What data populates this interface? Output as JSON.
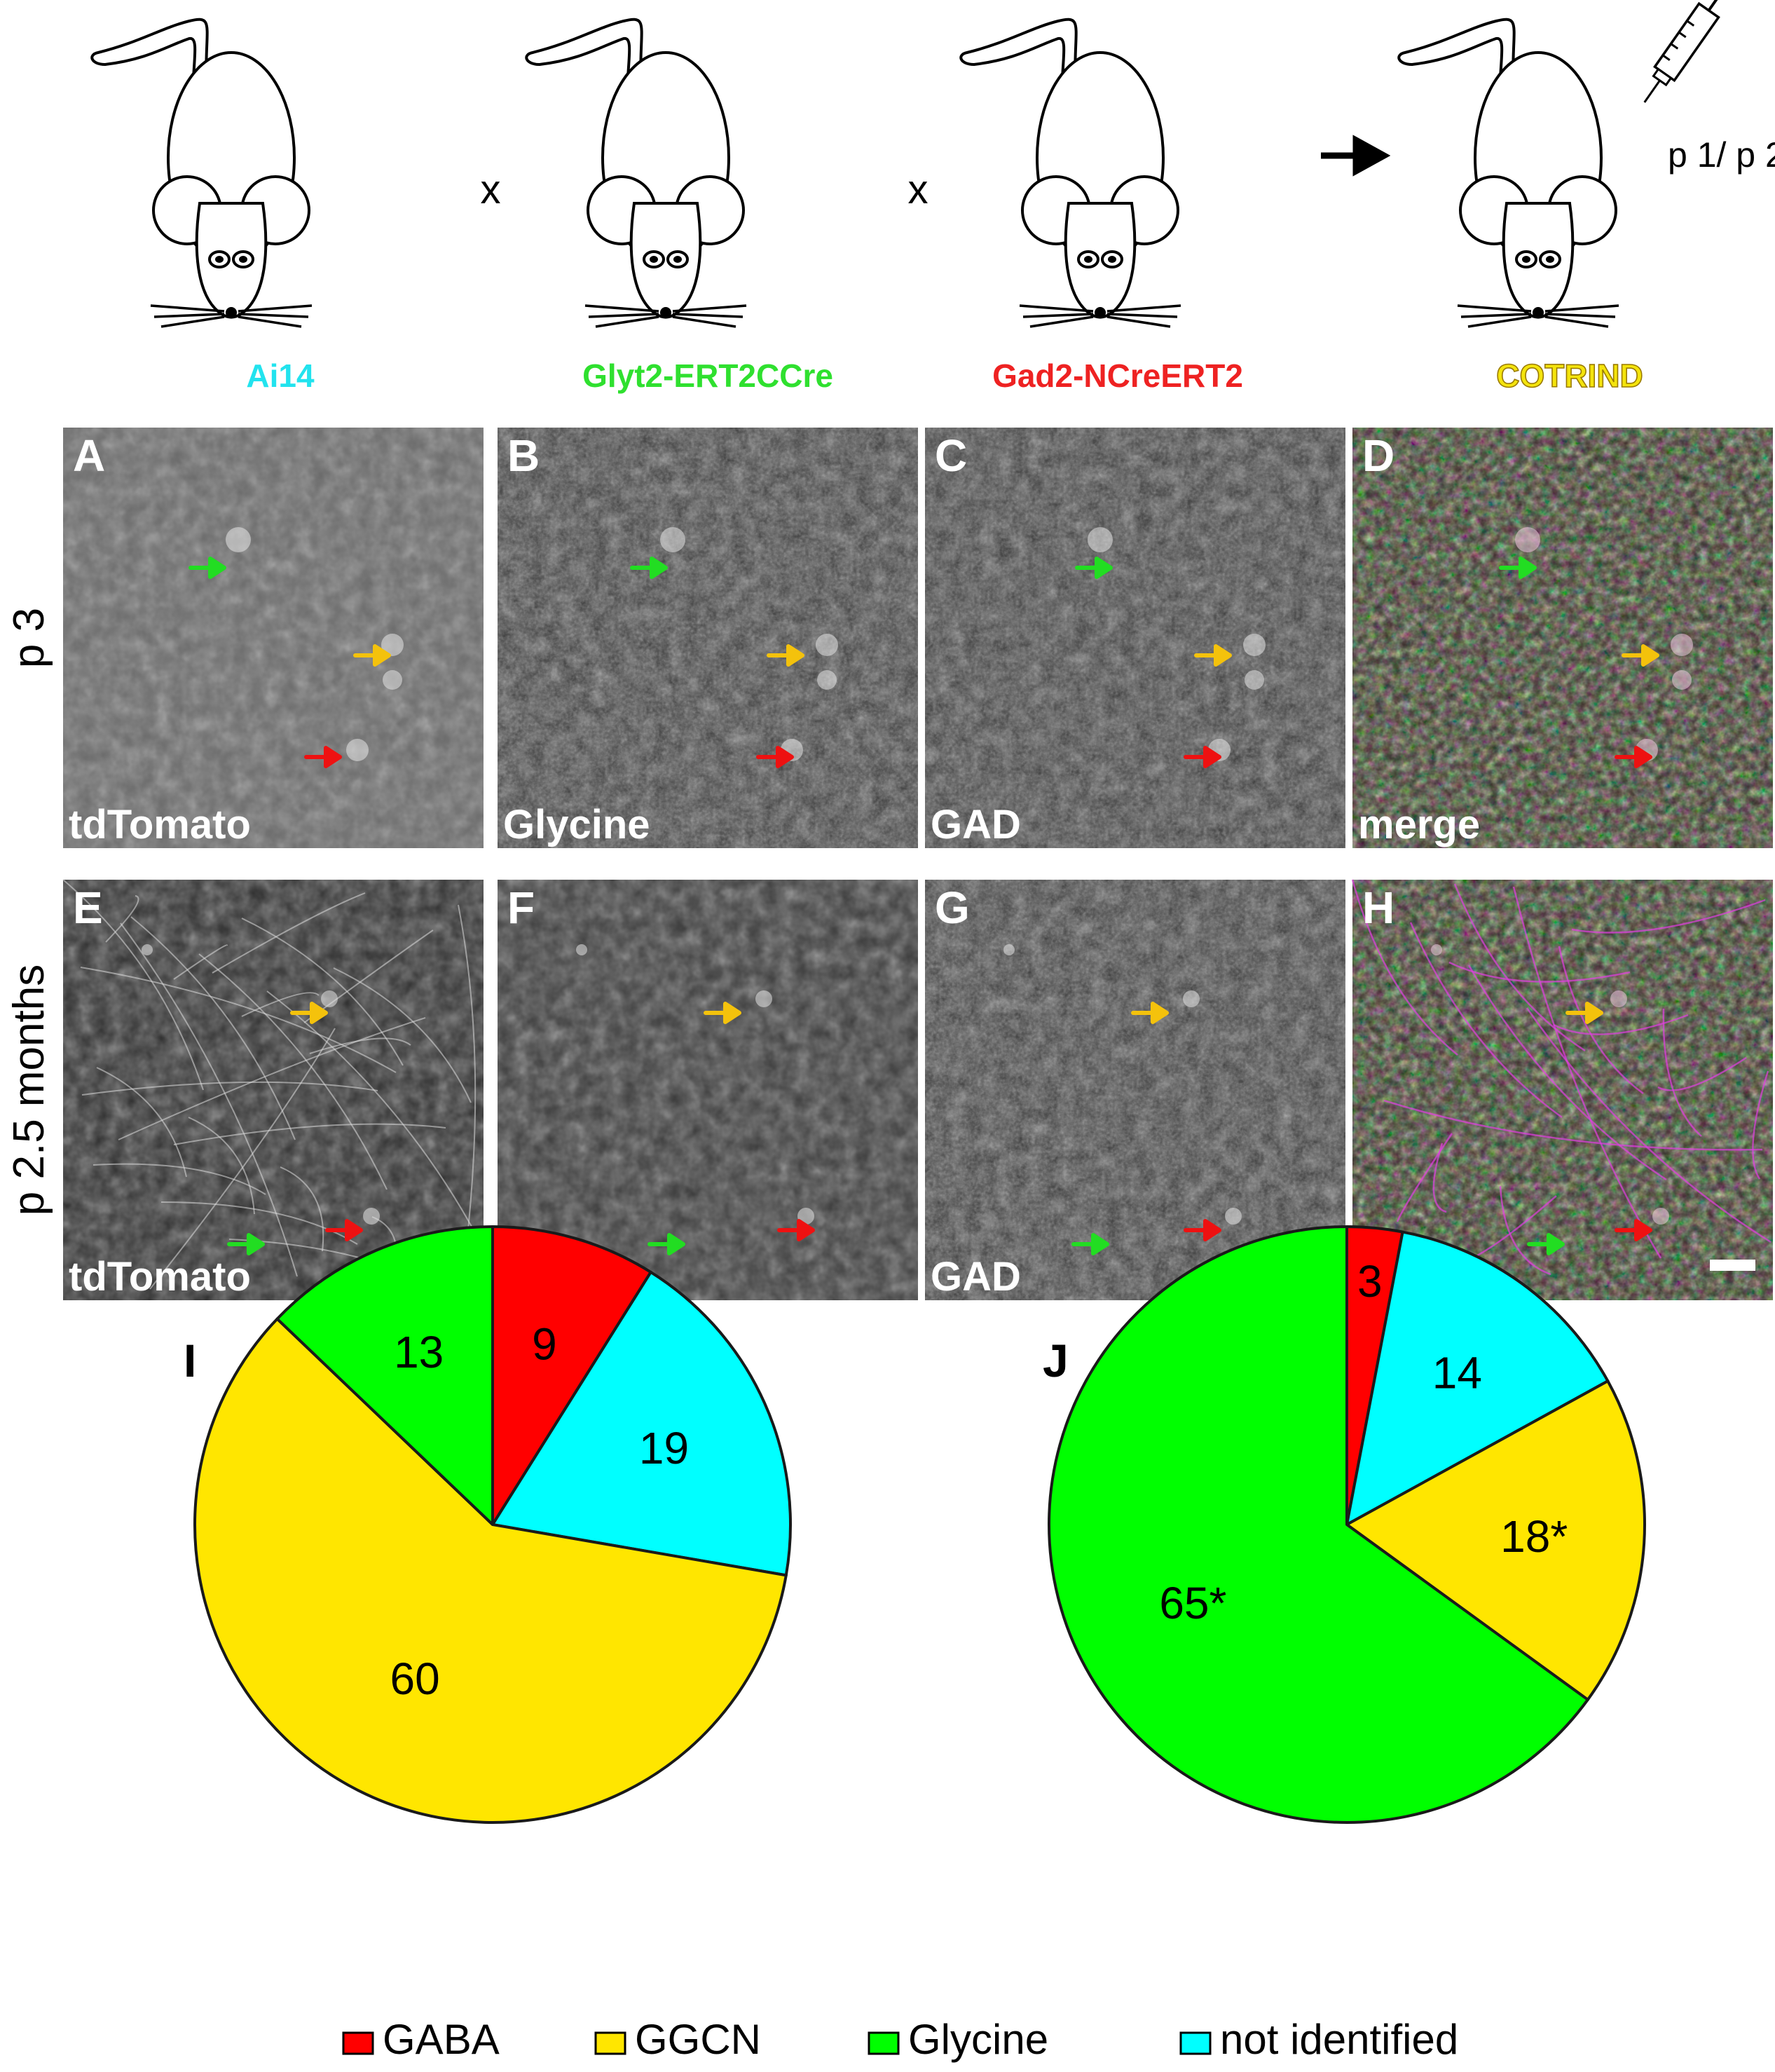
{
  "breeding": {
    "operators": [
      "x",
      "x"
    ],
    "strains": [
      {
        "label": "Ai14",
        "color": "#22e3ee"
      },
      {
        "label": "Glyt2-ERT2CCre",
        "color": "#2fe02f"
      },
      {
        "label": "Gad2-NCreERT2",
        "color": "#ee2222"
      },
      {
        "label": "COTRIND",
        "color": "#f4e40c"
      }
    ],
    "injection": "p 1/ p 2"
  },
  "micrographs": {
    "rows": [
      {
        "label": "p 3",
        "panels": [
          {
            "letter": "A",
            "caption": "tdTomato",
            "type": "gray"
          },
          {
            "letter": "B",
            "caption": "Glycine",
            "type": "gray"
          },
          {
            "letter": "C",
            "caption": "GAD",
            "type": "gray"
          },
          {
            "letter": "D",
            "caption": "merge",
            "type": "merge"
          }
        ]
      },
      {
        "label": "p 2.5 months",
        "panels": [
          {
            "letter": "E",
            "caption": "tdTomato",
            "type": "gray"
          },
          {
            "letter": "F",
            "caption": "Glycine",
            "type": "gray"
          },
          {
            "letter": "G",
            "caption": "GAD",
            "type": "gray"
          },
          {
            "letter": "H",
            "caption": "merge",
            "type": "merge"
          }
        ]
      }
    ],
    "arrow_colors": {
      "green": "#22dd22",
      "yellow": "#f4c20c",
      "red": "#ee1111"
    }
  },
  "colors": {
    "GABA": "#ff0000",
    "GGCN": "#ffe600",
    "Glycine": "#00ff00",
    "not identified": "#00ffff"
  },
  "chart_data": [
    {
      "type": "pie",
      "panel": "I",
      "title": "p 3",
      "slices": [
        {
          "category": "GABA",
          "value": 9,
          "label": "9"
        },
        {
          "category": "not identified",
          "value": 19,
          "label": "19"
        },
        {
          "category": "GGCN",
          "value": 60,
          "label": "60"
        },
        {
          "category": "Glycine",
          "value": 13,
          "label": "13"
        }
      ]
    },
    {
      "type": "pie",
      "panel": "J",
      "title": "p 2.5 months",
      "slices": [
        {
          "category": "GABA",
          "value": 3,
          "label": "3"
        },
        {
          "category": "not identified",
          "value": 14,
          "label": "14"
        },
        {
          "category": "GGCN",
          "value": 18,
          "label": "18*"
        },
        {
          "category": "Glycine",
          "value": 65,
          "label": "65*"
        }
      ]
    }
  ],
  "legend": {
    "placement": "bottom",
    "items": [
      "GABA",
      "GGCN",
      "Glycine",
      "not identified"
    ]
  }
}
